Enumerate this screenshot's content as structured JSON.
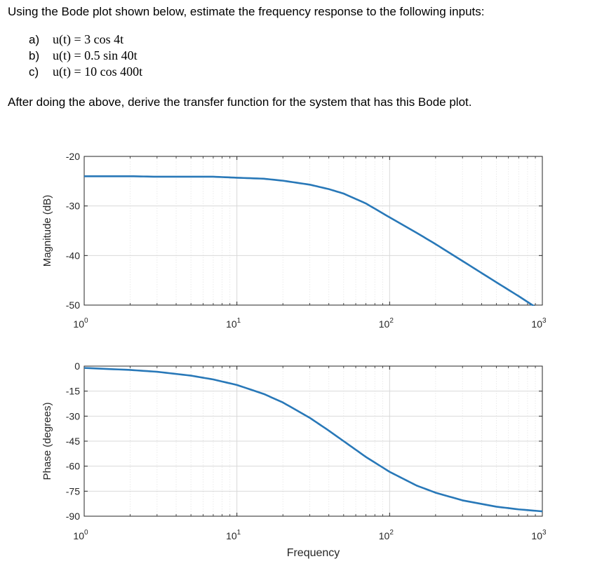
{
  "problem": {
    "intro": "Using the Bode plot shown below, estimate the frequency response to the following inputs:",
    "items": [
      {
        "label": "a)",
        "expr": "u(t) = 3 cos 4t"
      },
      {
        "label": "b)",
        "expr": "u(t) = 0.5 sin 40t"
      },
      {
        "label": "c)",
        "expr": "u(t) = 10 cos 400t"
      }
    ],
    "after": "After doing the above, derive the transfer function for the system that has this Bode plot."
  },
  "colors": {
    "line": "#2878b8",
    "grid": "#d9d9d9",
    "axis": "#262626",
    "tick_text": "#262626"
  },
  "chart_data": [
    {
      "type": "line",
      "ylabel": "Magnitude (dB)",
      "xscale": "log",
      "xlim": [
        1,
        1000
      ],
      "ylim": [
        -50,
        -20
      ],
      "xticks": [
        {
          "base": "10",
          "exp": "0"
        },
        {
          "base": "10",
          "exp": "1"
        },
        {
          "base": "10",
          "exp": "2"
        },
        {
          "base": "10",
          "exp": "3"
        }
      ],
      "yticks": [
        "-20",
        "-30",
        "-40",
        "-50"
      ],
      "ytick_values": [
        -20,
        -30,
        -40,
        -50
      ],
      "grid": true,
      "series": [
        {
          "x": [
            1,
            2,
            3,
            5,
            7,
            10,
            15,
            20,
            30,
            40,
            50,
            70,
            100,
            150,
            200,
            300,
            500,
            700,
            1000
          ],
          "values": [
            -24.0,
            -24.0,
            -24.1,
            -24.1,
            -24.1,
            -24.3,
            -24.5,
            -24.9,
            -25.7,
            -26.6,
            -27.5,
            -29.5,
            -32.3,
            -35.4,
            -37.7,
            -41.1,
            -45.4,
            -48.2,
            -51.3
          ]
        }
      ]
    },
    {
      "type": "line",
      "ylabel": "Phase (degrees)",
      "xlabel": "Frequency",
      "xscale": "log",
      "xlim": [
        1,
        1000
      ],
      "ylim": [
        -90,
        0
      ],
      "xticks": [
        {
          "base": "10",
          "exp": "0"
        },
        {
          "base": "10",
          "exp": "1"
        },
        {
          "base": "10",
          "exp": "2"
        },
        {
          "base": "10",
          "exp": "3"
        }
      ],
      "yticks": [
        "0",
        "-15",
        "-30",
        "-45",
        "-60",
        "-75",
        "-90"
      ],
      "ytick_values": [
        0,
        -15,
        -30,
        -45,
        -60,
        -75,
        -90
      ],
      "grid": true,
      "series": [
        {
          "x": [
            1,
            2,
            3,
            5,
            7,
            10,
            15,
            20,
            30,
            40,
            50,
            70,
            100,
            150,
            200,
            300,
            500,
            700,
            1000
          ],
          "values": [
            -1.1,
            -2.3,
            -3.4,
            -5.7,
            -8.0,
            -11.3,
            -16.7,
            -21.8,
            -31.0,
            -38.7,
            -45.0,
            -54.5,
            -63.4,
            -71.6,
            -75.9,
            -80.5,
            -84.3,
            -85.9,
            -87.1
          ]
        }
      ]
    }
  ]
}
